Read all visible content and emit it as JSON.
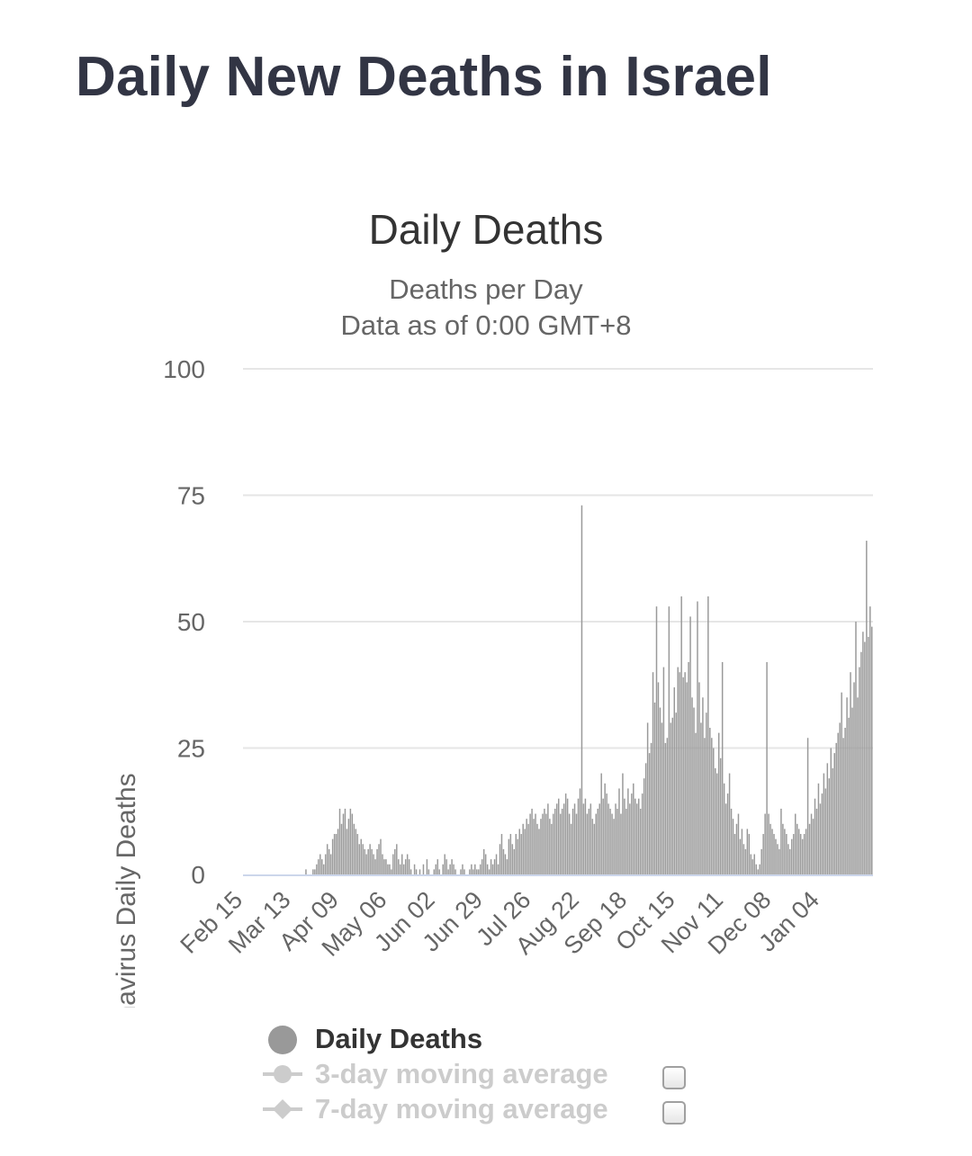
{
  "page": {
    "title": "Daily New Deaths in Israel"
  },
  "chart_data": {
    "type": "bar",
    "title": "Daily Deaths",
    "subtitle_lines": [
      "Deaths per Day",
      "Data as of 0:00 GMT+8"
    ],
    "ylabel": "Novel Coronavirus Daily Deaths",
    "xlabel": "",
    "ylim": [
      0,
      100
    ],
    "yticks": [
      0,
      25,
      50,
      75,
      100
    ],
    "grid": true,
    "x_start": "Feb 15",
    "x_tick_labels": [
      "Feb 15",
      "Mar 13",
      "Apr 09",
      "May 06",
      "Jun 02",
      "Jun 29",
      "Jul 26",
      "Aug 22",
      "Sep 18",
      "Oct 15",
      "Nov 11",
      "Dec 08",
      "Jan 04"
    ],
    "x_tick_interval_days": 27,
    "series": [
      {
        "name": "Daily Deaths",
        "color": "#999999",
        "values": [
          0,
          0,
          0,
          0,
          0,
          0,
          0,
          0,
          0,
          0,
          0,
          0,
          0,
          0,
          0,
          0,
          0,
          0,
          0,
          0,
          0,
          0,
          0,
          0,
          0,
          0,
          0,
          0,
          0,
          0,
          0,
          0,
          0,
          0,
          0,
          1,
          0,
          0,
          0,
          1,
          1,
          2,
          3,
          4,
          3,
          2,
          4,
          6,
          5,
          4,
          7,
          8,
          8,
          9,
          13,
          10,
          12,
          13,
          9,
          11,
          13,
          12,
          10,
          9,
          8,
          6,
          7,
          6,
          5,
          4,
          5,
          6,
          5,
          4,
          3,
          5,
          6,
          7,
          4,
          3,
          3,
          2,
          2,
          1,
          4,
          5,
          6,
          3,
          2,
          4,
          2,
          3,
          4,
          3,
          1,
          0,
          2,
          1,
          0,
          1,
          0,
          2,
          0,
          3,
          1,
          0,
          0,
          1,
          2,
          3,
          1,
          0,
          2,
          4,
          3,
          1,
          2,
          3,
          2,
          1,
          0,
          0,
          1,
          2,
          1,
          0,
          0,
          1,
          2,
          1,
          2,
          1,
          1,
          2,
          3,
          5,
          4,
          2,
          1,
          3,
          2,
          3,
          4,
          2,
          6,
          8,
          5,
          4,
          3,
          7,
          8,
          6,
          5,
          8,
          7,
          9,
          8,
          10,
          9,
          11,
          10,
          12,
          13,
          11,
          12,
          10,
          9,
          11,
          12,
          13,
          12,
          14,
          11,
          10,
          12,
          13,
          14,
          15,
          12,
          13,
          14,
          16,
          15,
          12,
          10,
          13,
          14,
          12,
          15,
          17,
          73,
          14,
          15,
          12,
          13,
          14,
          11,
          10,
          12,
          13,
          14,
          20,
          15,
          18,
          16,
          14,
          13,
          12,
          11,
          14,
          13,
          17,
          12,
          20,
          15,
          13,
          17,
          14,
          16,
          18,
          15,
          14,
          15,
          13,
          16,
          19,
          22,
          30,
          24,
          26,
          40,
          34,
          53,
          38,
          33,
          30,
          41,
          26,
          27,
          53,
          30,
          31,
          37,
          32,
          41,
          40,
          55,
          39,
          40,
          38,
          42,
          51,
          35,
          33,
          28,
          54,
          38,
          30,
          35,
          27,
          32,
          55,
          29,
          27,
          25,
          21,
          20,
          28,
          23,
          42,
          18,
          14,
          16,
          20,
          13,
          11,
          8,
          10,
          12,
          7,
          9,
          6,
          5,
          9,
          8,
          4,
          3,
          4,
          2,
          1,
          2,
          5,
          8,
          12,
          42,
          12,
          10,
          9,
          8,
          7,
          6,
          5,
          13,
          10,
          9,
          8,
          6,
          5,
          7,
          8,
          12,
          10,
          9,
          8,
          7,
          8,
          9,
          27,
          10,
          12,
          11,
          15,
          13,
          18,
          14,
          16,
          20,
          17,
          22,
          19,
          25,
          21,
          24,
          26,
          28,
          30,
          36,
          27,
          29,
          35,
          31,
          40,
          33,
          38,
          50,
          35,
          41,
          44,
          48,
          46,
          66,
          47,
          53,
          49
        ]
      },
      {
        "name": "3-day moving average",
        "visible": false
      },
      {
        "name": "7-day moving average",
        "visible": false
      }
    ],
    "legend_position": "bottom"
  }
}
